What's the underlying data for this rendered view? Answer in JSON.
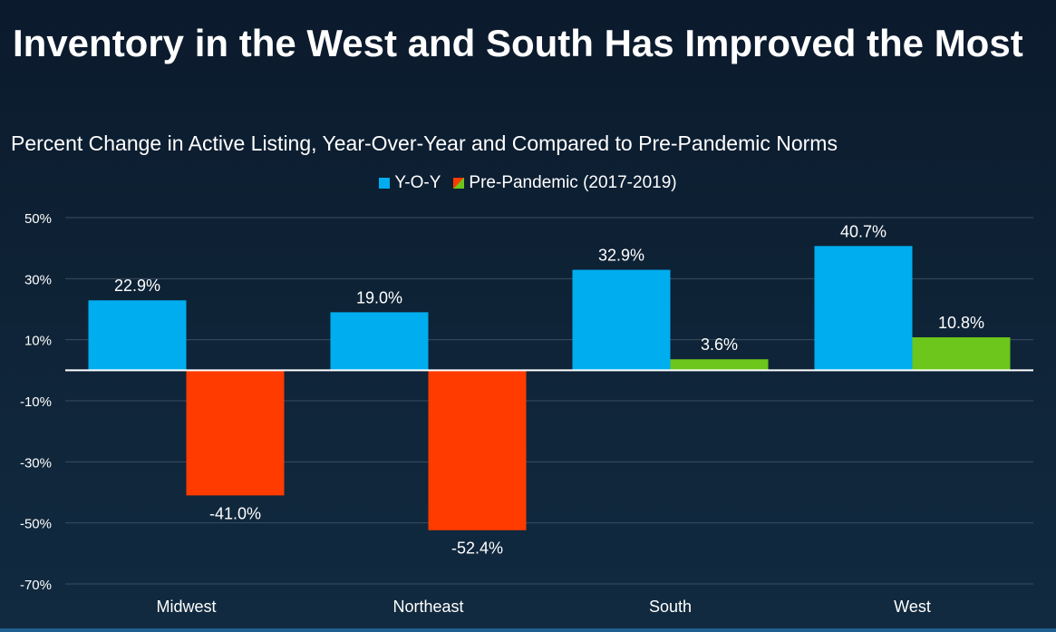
{
  "colors": {
    "yoy": "#00adef",
    "pre_negative": "#ff3b00",
    "pre_positive": "#6cc61b",
    "grid": "#3a4d60",
    "zero_line": "#ffffff",
    "text": "#ffffff"
  },
  "chart_data": {
    "type": "bar",
    "title": "Inventory in the West and South Has Improved the Most",
    "subtitle": "Percent Change in Active Listing, Year-Over-Year and Compared to Pre-Pandemic Norms",
    "categories": [
      "Midwest",
      "Northeast",
      "South",
      "West"
    ],
    "series": [
      {
        "name": "Y-O-Y",
        "values": [
          22.9,
          19.0,
          32.9,
          40.7
        ],
        "labels": [
          "22.9%",
          "19.0%",
          "32.9%",
          "40.7%"
        ]
      },
      {
        "name": "Pre-Pandemic (2017-2019)",
        "values": [
          -41.0,
          -52.4,
          3.6,
          10.8
        ],
        "labels": [
          "-41.0%",
          "-52.4%",
          "3.6%",
          "10.8%"
        ]
      }
    ],
    "ylim": [
      -70,
      50
    ],
    "yticks": [
      "50%",
      "30%",
      "10%",
      "-10%",
      "-30%",
      "-50%",
      "-70%"
    ],
    "ytick_values": [
      50,
      30,
      10,
      -10,
      -30,
      -50,
      -70
    ],
    "grid": true,
    "legend": "top-center",
    "xlabel": "",
    "ylabel": ""
  }
}
